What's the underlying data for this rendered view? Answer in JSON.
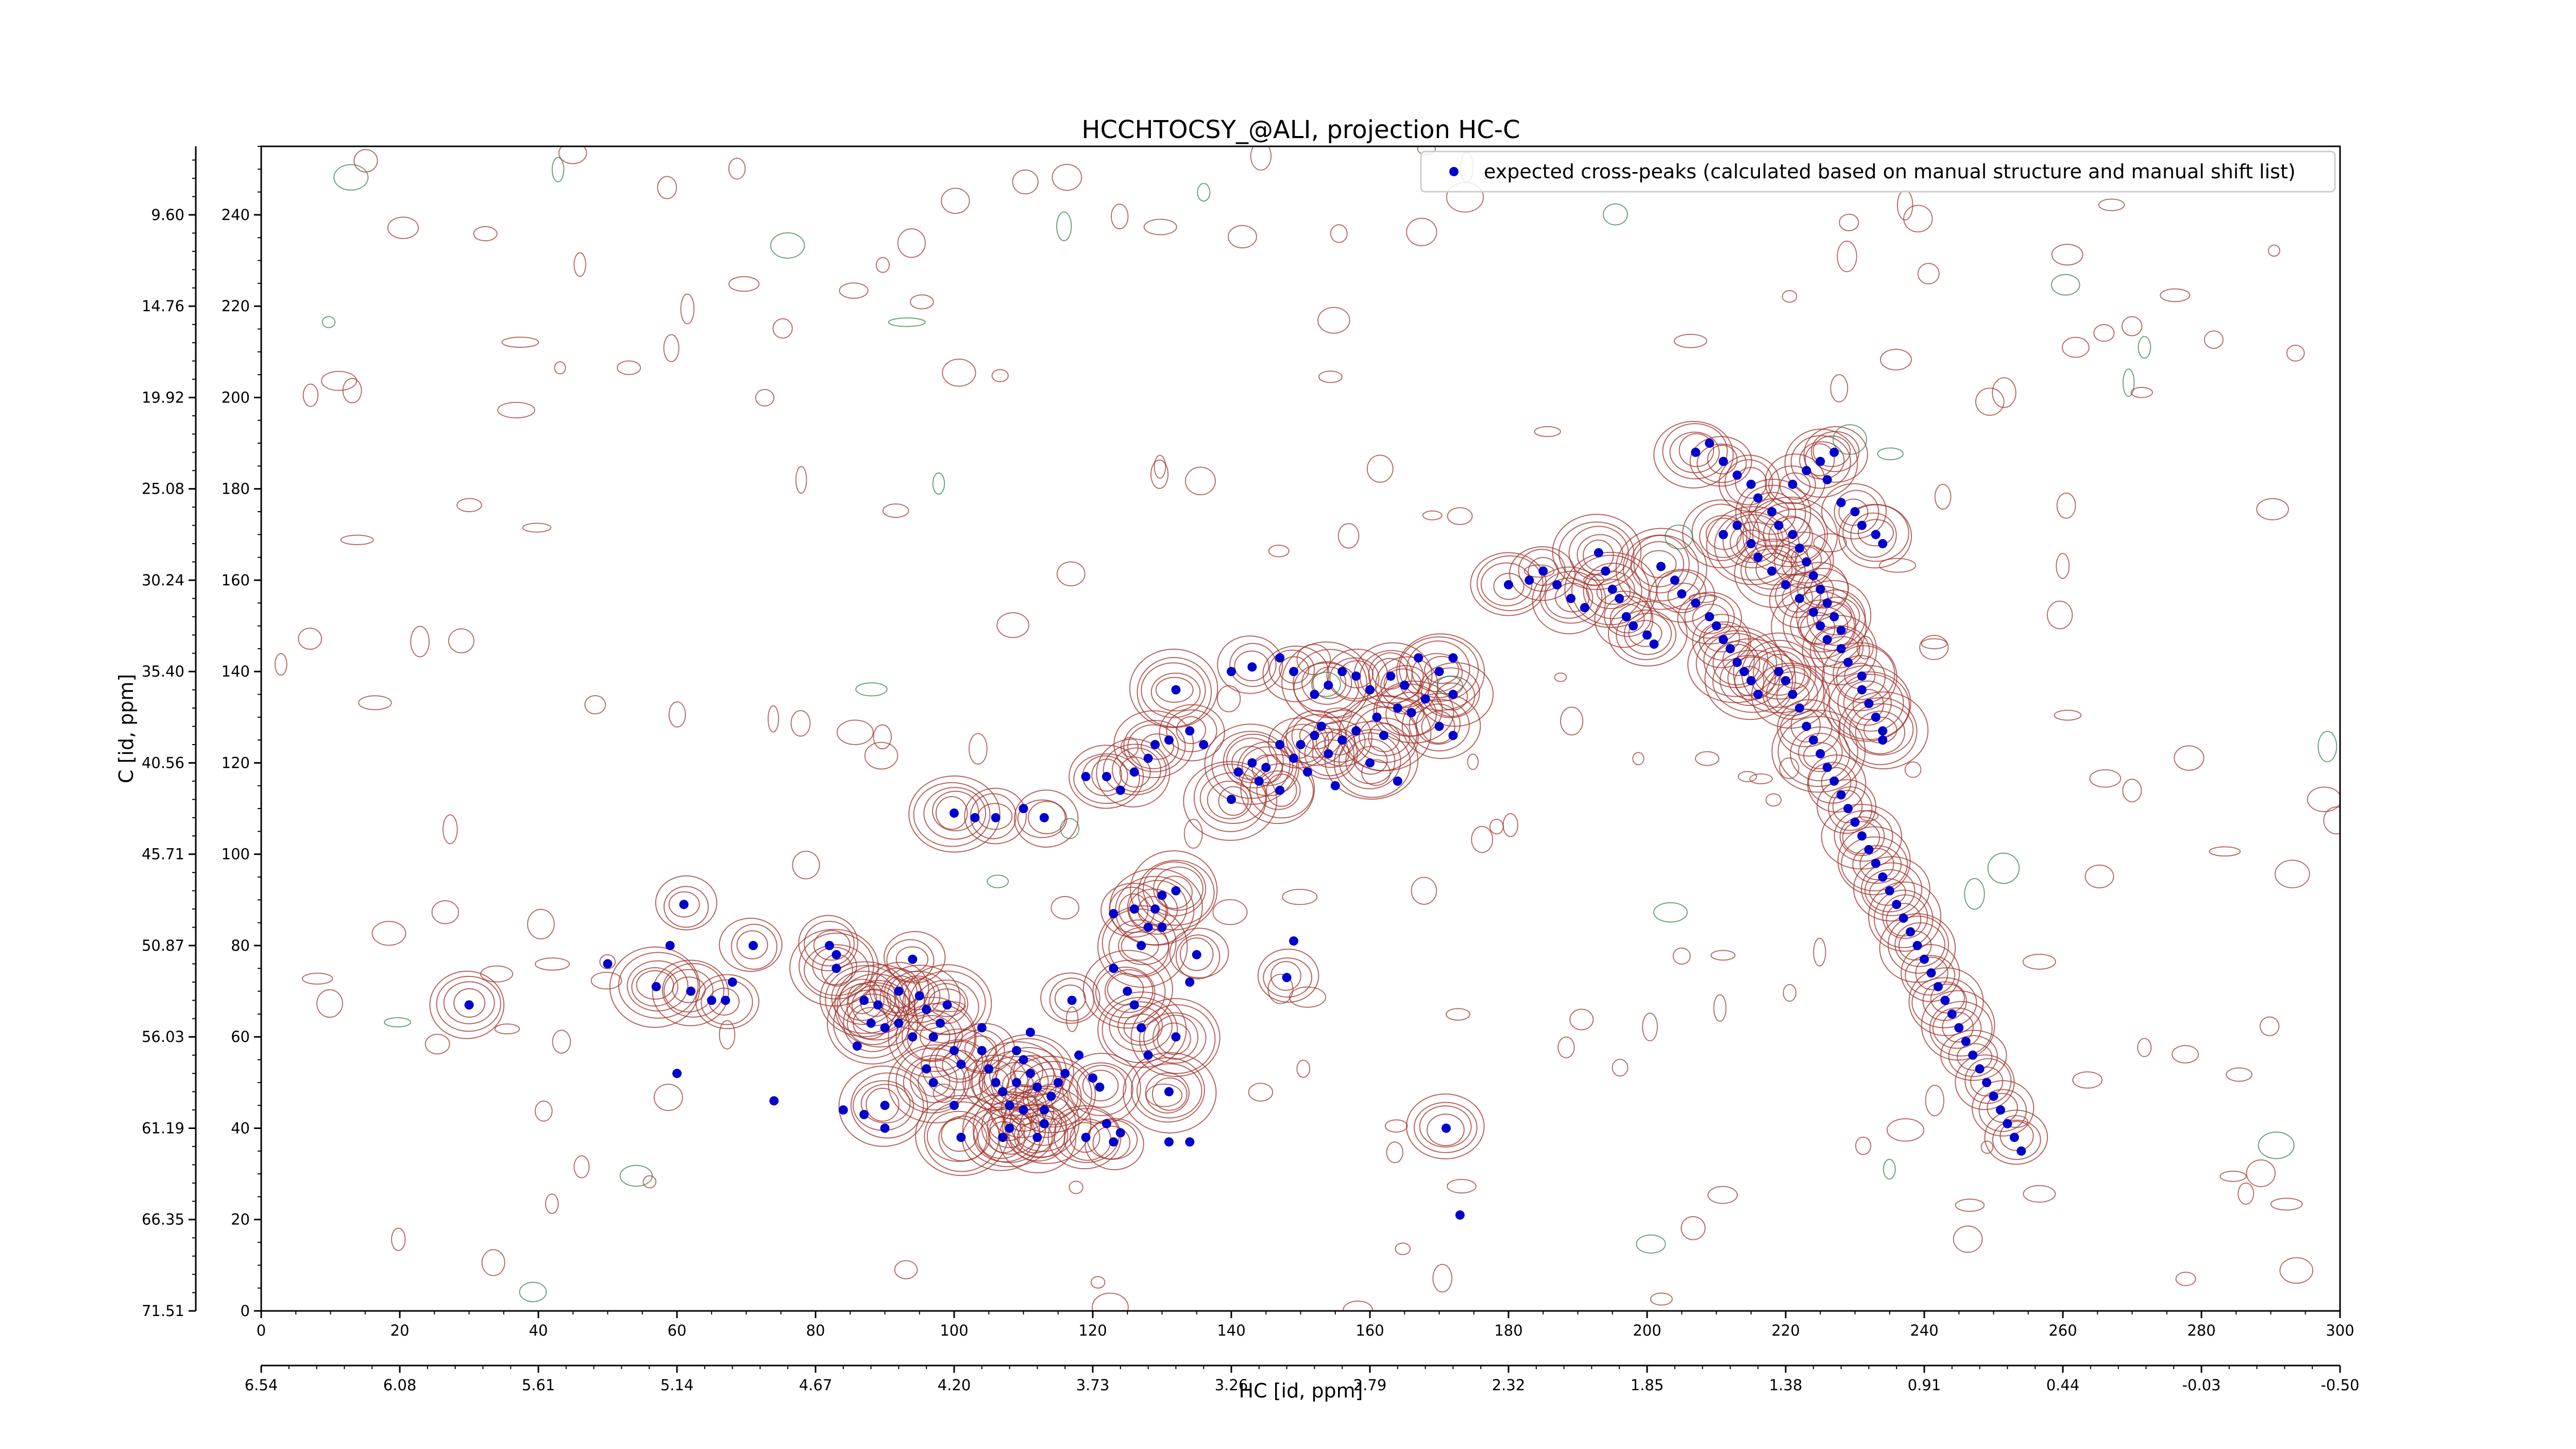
{
  "chart_data": {
    "type": "scatter",
    "title": "HCCHTOCSY_@ALI, projection HC-C",
    "xlabel": "HC [id, ppm]",
    "ylabel": "C [id, ppm]",
    "xlim": [
      0,
      300
    ],
    "ylim": [
      0,
      255
    ],
    "x_index_ticks": [
      "0",
      "20",
      "40",
      "60",
      "80",
      "100",
      "120",
      "140",
      "160",
      "180",
      "200",
      "220",
      "240",
      "260",
      "280",
      "300"
    ],
    "x_ppm_ticks": [
      "6.54",
      "6.08",
      "5.61",
      "5.14",
      "4.67",
      "4.20",
      "3.73",
      "3.26",
      "2.79",
      "2.32",
      "1.85",
      "1.38",
      "0.91",
      "0.44",
      "-0.03",
      "-0.50"
    ],
    "y_index_ticks": [
      "0",
      "20",
      "40",
      "60",
      "80",
      "100",
      "120",
      "140",
      "160",
      "180",
      "200",
      "220",
      "240"
    ],
    "y_ppm_ticks": [
      "71.51",
      "66.35",
      "61.19",
      "56.03",
      "50.87",
      "45.71",
      "40.56",
      "35.40",
      "30.24",
      "25.08",
      "19.92",
      "14.76",
      "9.60"
    ],
    "legend": {
      "placement": "top-right",
      "label": "expected cross-peaks (calculated based on manual structure and manual shift list)"
    },
    "colors": {
      "peak": "#0000cc",
      "contour_positive": "#a0302a",
      "contour_negative": "#2e7d46"
    },
    "series": [
      {
        "name": "expected cross-peaks (calculated based on manual structure and manual shift list)",
        "points": [
          [
            30,
            67
          ],
          [
            50,
            76
          ],
          [
            61,
            89
          ],
          [
            59,
            80
          ],
          [
            57,
            71
          ],
          [
            60,
            52
          ],
          [
            62,
            70
          ],
          [
            65,
            68
          ],
          [
            67,
            68
          ],
          [
            68,
            72
          ],
          [
            71,
            80
          ],
          [
            74,
            46
          ],
          [
            82,
            80
          ],
          [
            83,
            78
          ],
          [
            83,
            75
          ],
          [
            84,
            44
          ],
          [
            87,
            68
          ],
          [
            86,
            58
          ],
          [
            89,
            67
          ],
          [
            87,
            43
          ],
          [
            88,
            63
          ],
          [
            90,
            62
          ],
          [
            90,
            45
          ],
          [
            90,
            40
          ],
          [
            92,
            70
          ],
          [
            92,
            63
          ],
          [
            94,
            77
          ],
          [
            94,
            60
          ],
          [
            95,
            69
          ],
          [
            96,
            66
          ],
          [
            97,
            60
          ],
          [
            96,
            53
          ],
          [
            97,
            50
          ],
          [
            98,
            63
          ],
          [
            99,
            67
          ],
          [
            100,
            57
          ],
          [
            101,
            54
          ],
          [
            100,
            45
          ],
          [
            101,
            38
          ],
          [
            104,
            62
          ],
          [
            104,
            57
          ],
          [
            105,
            53
          ],
          [
            106,
            50
          ],
          [
            107,
            48
          ],
          [
            107,
            38
          ],
          [
            108,
            45
          ],
          [
            108,
            40
          ],
          [
            109,
            57
          ],
          [
            109,
            50
          ],
          [
            110,
            55
          ],
          [
            110,
            44
          ],
          [
            111,
            61
          ],
          [
            111,
            52
          ],
          [
            112,
            49
          ],
          [
            112,
            38
          ],
          [
            113,
            44
          ],
          [
            113,
            41
          ],
          [
            115,
            50
          ],
          [
            114,
            47
          ],
          [
            116,
            52
          ],
          [
            117,
            68
          ],
          [
            118,
            56
          ],
          [
            119,
            38
          ],
          [
            120,
            51
          ],
          [
            121,
            49
          ],
          [
            122,
            41
          ],
          [
            123,
            37
          ],
          [
            124,
            39
          ],
          [
            125,
            70
          ],
          [
            126,
            67
          ],
          [
            127,
            62
          ],
          [
            128,
            56
          ],
          [
            129,
            88
          ],
          [
            130,
            84
          ],
          [
            131,
            48
          ],
          [
            131,
            37
          ],
          [
            132,
            60
          ],
          [
            134,
            37
          ],
          [
            135,
            78
          ],
          [
            134,
            72
          ],
          [
            100,
            109
          ],
          [
            103,
            108
          ],
          [
            106,
            108
          ],
          [
            110,
            110
          ],
          [
            113,
            108
          ],
          [
            119,
            117
          ],
          [
            122,
            117
          ],
          [
            124,
            114
          ],
          [
            126,
            118
          ],
          [
            128,
            121
          ],
          [
            129,
            124
          ],
          [
            131,
            125
          ],
          [
            134,
            127
          ],
          [
            136,
            124
          ],
          [
            132,
            136
          ],
          [
            123,
            87
          ],
          [
            126,
            88
          ],
          [
            128,
            84
          ],
          [
            127,
            80
          ],
          [
            130,
            91
          ],
          [
            132,
            92
          ],
          [
            123,
            75
          ],
          [
            140,
            112
          ],
          [
            141,
            118
          ],
          [
            143,
            120
          ],
          [
            144,
            116
          ],
          [
            145,
            119
          ],
          [
            147,
            124
          ],
          [
            147,
            114
          ],
          [
            149,
            121
          ],
          [
            150,
            124
          ],
          [
            151,
            118
          ],
          [
            152,
            126
          ],
          [
            153,
            128
          ],
          [
            154,
            122
          ],
          [
            155,
            115
          ],
          [
            156,
            125
          ],
          [
            158,
            127
          ],
          [
            160,
            120
          ],
          [
            161,
            130
          ],
          [
            162,
            126
          ],
          [
            164,
            116
          ],
          [
            165,
            137
          ],
          [
            167,
            143
          ],
          [
            170,
            140
          ],
          [
            172,
            143
          ],
          [
            172,
            135
          ],
          [
            140,
            140
          ],
          [
            143,
            141
          ],
          [
            147,
            143
          ],
          [
            149,
            140
          ],
          [
            152,
            135
          ],
          [
            154,
            137
          ],
          [
            156,
            140
          ],
          [
            158,
            139
          ],
          [
            160,
            136
          ],
          [
            163,
            139
          ],
          [
            164,
            132
          ],
          [
            166,
            131
          ],
          [
            168,
            134
          ],
          [
            170,
            128
          ],
          [
            172,
            126
          ],
          [
            148,
            73
          ],
          [
            149,
            81
          ],
          [
            171,
            40
          ],
          [
            173,
            21
          ],
          [
            180,
            159
          ],
          [
            183,
            160
          ],
          [
            185,
            162
          ],
          [
            187,
            159
          ],
          [
            189,
            156
          ],
          [
            191,
            154
          ],
          [
            193,
            166
          ],
          [
            194,
            162
          ],
          [
            195,
            158
          ],
          [
            196,
            156
          ],
          [
            197,
            152
          ],
          [
            198,
            150
          ],
          [
            200,
            148
          ],
          [
            201,
            146
          ],
          [
            202,
            163
          ],
          [
            204,
            160
          ],
          [
            205,
            157
          ],
          [
            207,
            155
          ],
          [
            209,
            152
          ],
          [
            210,
            150
          ],
          [
            211,
            147
          ],
          [
            212,
            145
          ],
          [
            213,
            142
          ],
          [
            214,
            140
          ],
          [
            215,
            138
          ],
          [
            216,
            135
          ],
          [
            211,
            170
          ],
          [
            213,
            172
          ],
          [
            215,
            168
          ],
          [
            216,
            165
          ],
          [
            218,
            162
          ],
          [
            220,
            159
          ],
          [
            222,
            156
          ],
          [
            224,
            153
          ],
          [
            225,
            150
          ],
          [
            226,
            147
          ],
          [
            228,
            145
          ],
          [
            229,
            142
          ],
          [
            231,
            139
          ],
          [
            231,
            136
          ],
          [
            232,
            133
          ],
          [
            233,
            130
          ],
          [
            234,
            127
          ],
          [
            234,
            125
          ],
          [
            207,
            188
          ],
          [
            209,
            190
          ],
          [
            211,
            186
          ],
          [
            213,
            183
          ],
          [
            215,
            181
          ],
          [
            216,
            178
          ],
          [
            218,
            175
          ],
          [
            219,
            172
          ],
          [
            221,
            170
          ],
          [
            222,
            167
          ],
          [
            223,
            164
          ],
          [
            224,
            161
          ],
          [
            225,
            158
          ],
          [
            226,
            155
          ],
          [
            227,
            152
          ],
          [
            228,
            149
          ],
          [
            221,
            181
          ],
          [
            223,
            184
          ],
          [
            225,
            186
          ],
          [
            226,
            182
          ],
          [
            227,
            188
          ],
          [
            228,
            177
          ],
          [
            230,
            175
          ],
          [
            231,
            172
          ],
          [
            233,
            170
          ],
          [
            234,
            168
          ],
          [
            219,
            140
          ],
          [
            220,
            138
          ],
          [
            221,
            135
          ],
          [
            222,
            132
          ],
          [
            223,
            128
          ],
          [
            224,
            125
          ],
          [
            225,
            122
          ],
          [
            226,
            119
          ],
          [
            227,
            116
          ],
          [
            228,
            113
          ],
          [
            229,
            110
          ],
          [
            230,
            107
          ],
          [
            231,
            104
          ],
          [
            232,
            101
          ],
          [
            233,
            98
          ],
          [
            234,
            95
          ],
          [
            235,
            92
          ],
          [
            236,
            89
          ],
          [
            237,
            86
          ],
          [
            238,
            83
          ],
          [
            239,
            80
          ],
          [
            240,
            77
          ],
          [
            241,
            74
          ],
          [
            242,
            71
          ],
          [
            243,
            68
          ],
          [
            244,
            65
          ],
          [
            245,
            62
          ],
          [
            246,
            59
          ],
          [
            247,
            56
          ],
          [
            248,
            53
          ],
          [
            249,
            50
          ],
          [
            250,
            47
          ],
          [
            251,
            44
          ],
          [
            252,
            41
          ],
          [
            253,
            38
          ],
          [
            254,
            35
          ]
        ]
      }
    ]
  }
}
